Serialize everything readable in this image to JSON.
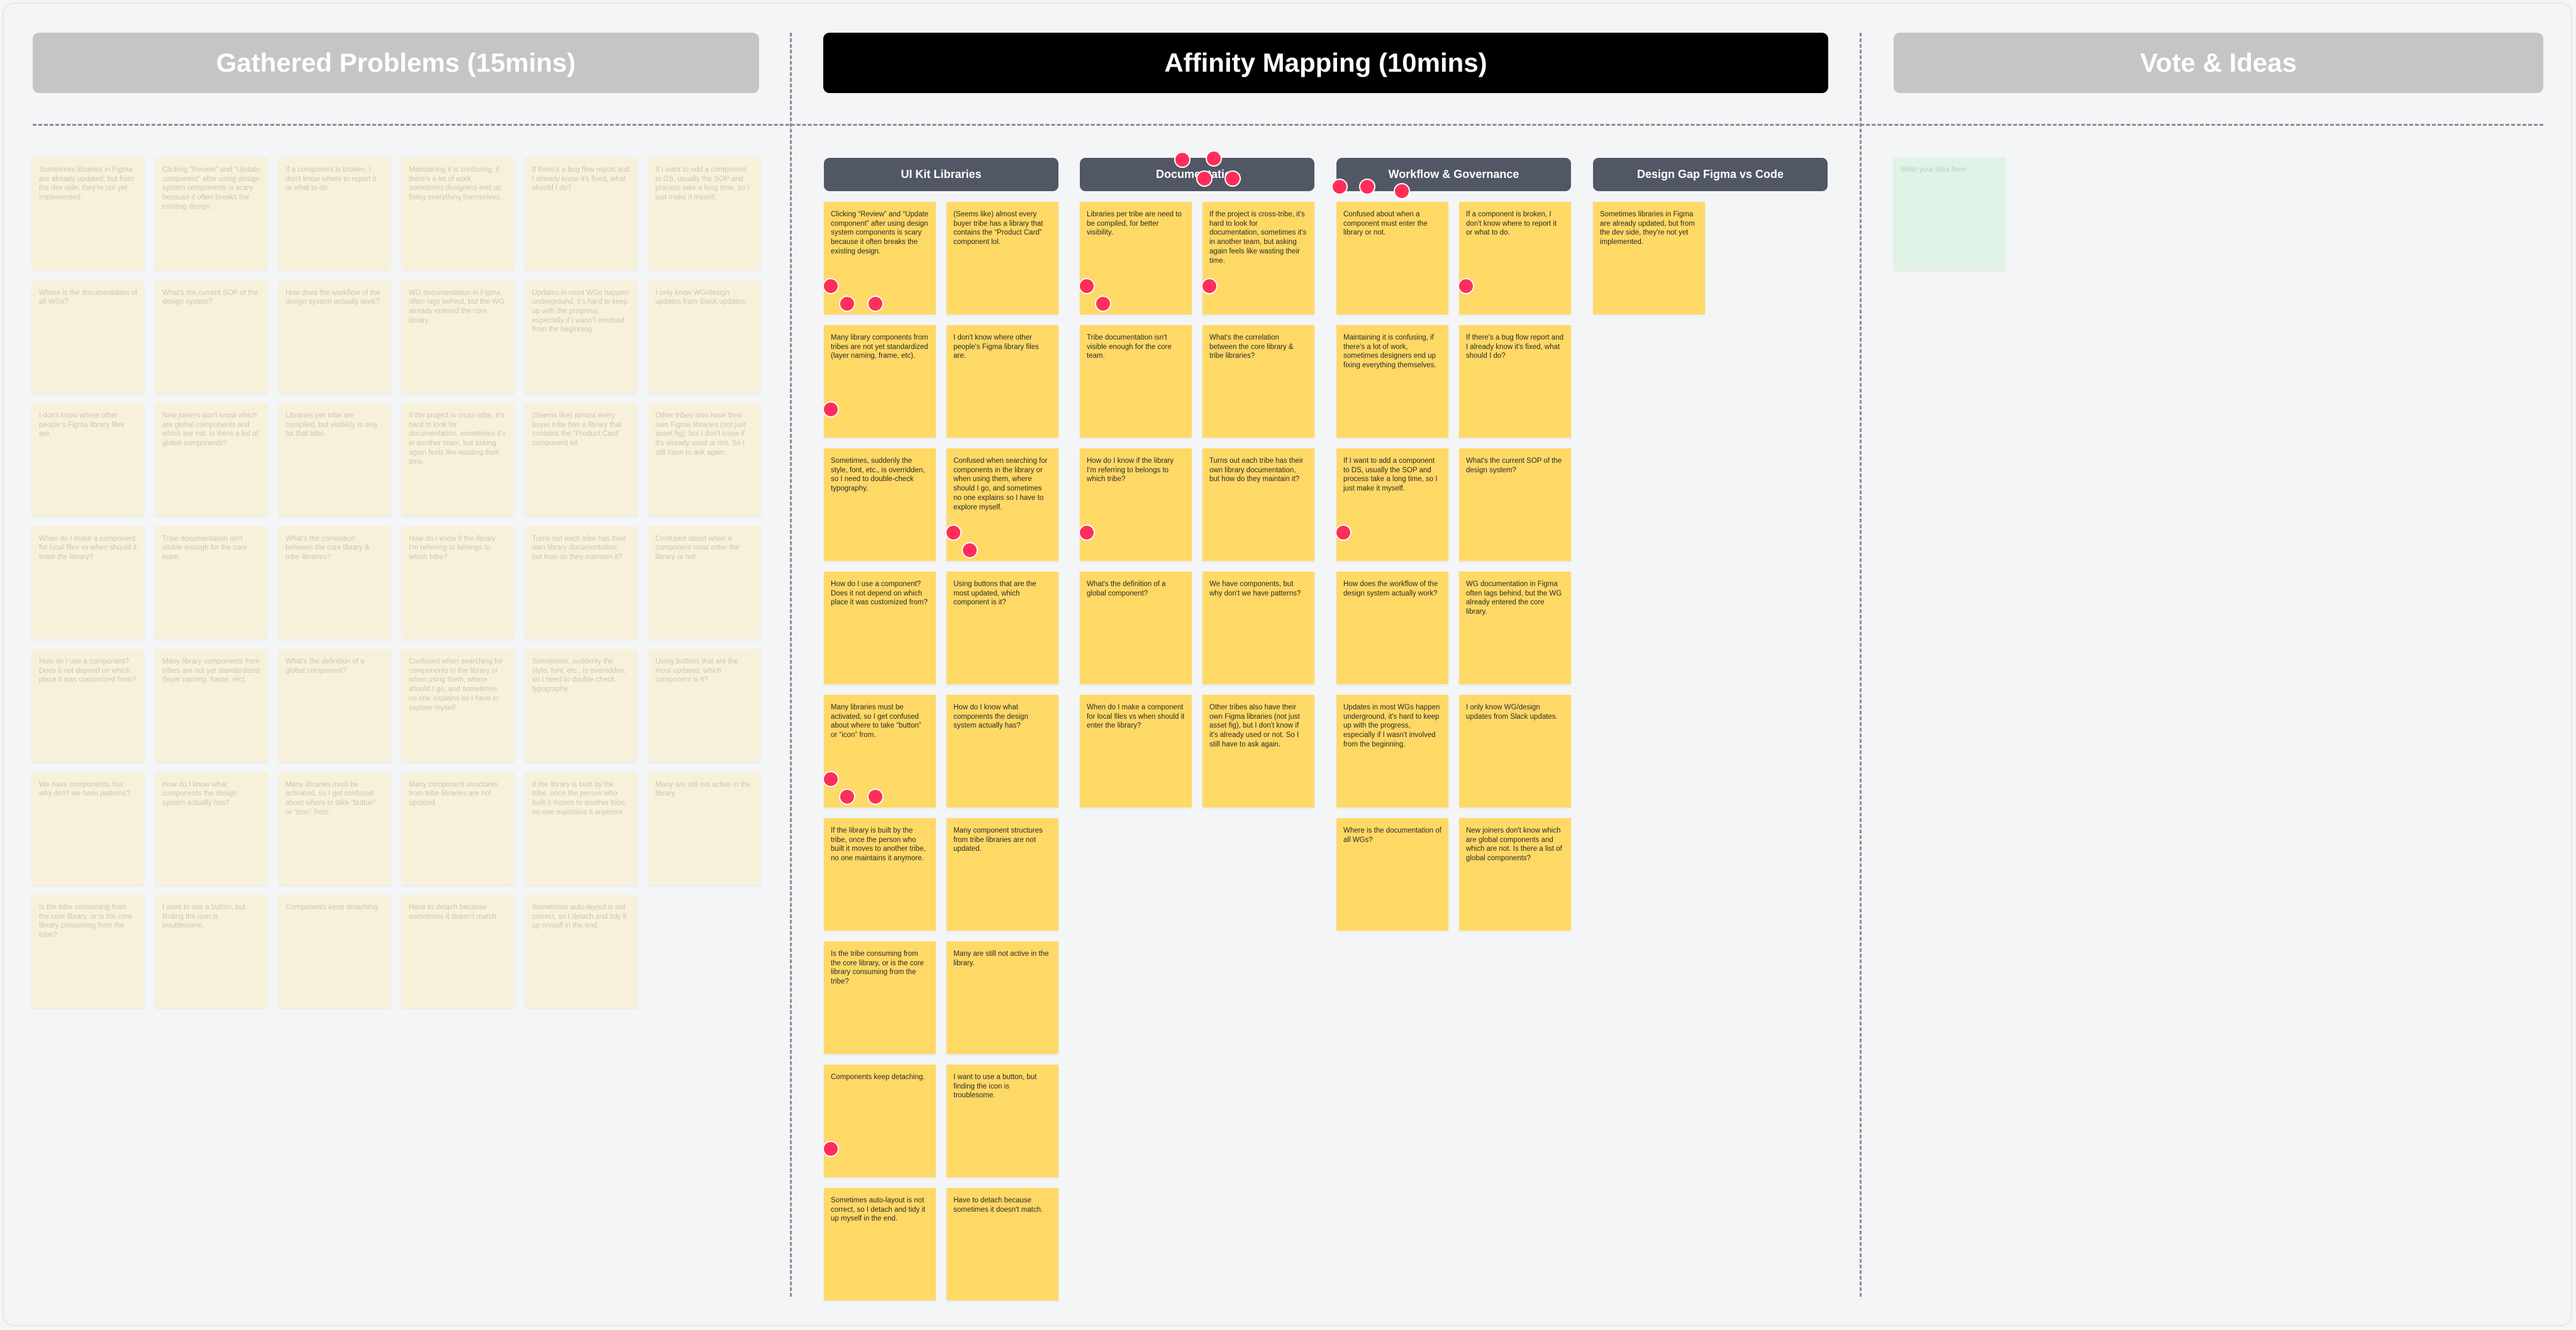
{
  "colors": {
    "background": "#f4f5f7",
    "section_inactive": "#c4c5c7",
    "section_active": "#000000",
    "group_header": "#525766",
    "sticky": "#ffd966",
    "sticky_faded": "#f8f1da",
    "idea_sticky": "#dff3e6",
    "vote_dot": "#ff2d5a"
  },
  "sections": {
    "gathered": {
      "title": "Gathered Problems (15mins)"
    },
    "affinity": {
      "title": "Affinity Mapping (10mins)"
    },
    "vote": {
      "title": "Vote & Ideas",
      "idea_placeholder": "Write your Idea here"
    }
  },
  "gathered_notes": [
    "Sometimes libraries in Figma are already updated, but from the dev side, they're not yet implemented.",
    "Clicking “Review” and “Update component” after using design system components is scary because it often breaks the existing design.",
    "If a component is broken, I don't know where to report it or what to do.",
    "Maintaining it is confusing, if there's a lot of work, sometimes designers end up fixing everything themselves.",
    "If there's a bug flow report and I already know it's fixed, what should I do?",
    "If I want to add a component to DS, usually the SOP and process take a long time, so I just make it myself.",
    "Where is the documentation of all WGs?",
    "What's the current SOP of the design system?",
    "How does the workflow of the design system actually work?",
    "WG documentation in Figma often lags behind, but the WG already entered the core library.",
    "Updates in most WGs happen underground, it's hard to keep up with the progress, especially if I wasn't involved from the beginning.",
    "I only know WG/design updates from Slack updates.",
    "I don't know where other people's Figma library files are.",
    "New joiners don't know which are global components and which are not. Is there a list of global components?",
    "Libraries per tribe are compiled, but visibility is only for that tribe.",
    "If the project is cross-tribe, it's hard to look for documentation, sometimes it's in another team, but asking again feels like wasting their time.",
    "(Seems like) almost every buyer tribe has a library that contains the “Product Card” component lol.",
    "Other tribes also have their own Figma libraries (not just asset fig), but I don't know if it's already used or not. So I still have to ask again.",
    "When do I make a component for local files vs when should it enter the library?",
    "Tribe documentation isn't visible enough for the core team.",
    "What's the correlation between the core library & tribe libraries?",
    "How do I know if the library I'm referring to belongs to which tribe?",
    "Turns out each tribe has their own library documentation, but how do they maintain it?",
    "Confused about when a component must enter the library or not.",
    "How do I use a component? Does it not depend on which place it was customized from?",
    "Many library components from tribes are not yet standardized (layer naming, frame, etc).",
    "What's the definition of a global component?",
    "Confused when searching for components in the library or when using them, where should I go, and sometimes no one explains so I have to explore myself.",
    "Sometimes, suddenly the style, font, etc., is overridden, so I need to double-check typography.",
    "Using buttons that are the most updated, which component is it?",
    "We have components, but why don't we have patterns?",
    "How do I know what components the design system actually has?",
    "Many libraries must be activated, so I get confused about where to take “button” or “icon” from.",
    "Many component structures from tribe libraries are not updated.",
    "If the library is built by the tribe, once the person who built it moves to another tribe, no one maintains it anymore.",
    "Many are still not active in the library.",
    "Is the tribe consuming from the core library, or is the core library consuming from the tribe?",
    "I want to use a button, but finding the icon is troublesome.",
    "Components keep detaching.",
    "Have to detach because sometimes it doesn't match.",
    "Sometimes auto-layout is not correct, so I detach and tidy it up myself in the end."
  ],
  "groups": [
    {
      "label": "UI Kit Libraries",
      "votes": 0,
      "notes": [
        {
          "text": "Clicking “Review” and “Update component” after using design system components is scary because it often breaks the existing design.",
          "votes": 3
        },
        {
          "text": "(Seems like) almost every buyer tribe has a library that contains the “Product Card” component lol.",
          "votes": 0
        },
        {
          "text": "Many library components from tribes are not yet standardized (layer naming, frame, etc).",
          "votes": 1
        },
        {
          "text": "I don't know where other people's Figma library files are.",
          "votes": 0
        },
        {
          "text": "Sometimes, suddenly the style, font, etc., is overridden, so I need to double-check typography.",
          "votes": 0
        },
        {
          "text": "Confused when searching for components in the library or when using them, where should I go, and sometimes no one explains so I have to explore myself.",
          "votes": 2
        },
        {
          "text": "How do I use a component? Does it not depend on which place it was customized from?",
          "votes": 0
        },
        {
          "text": "Using buttons that are the most updated, which component is it?",
          "votes": 0
        },
        {
          "text": "Many libraries must be activated, so I get confused about where to take “button” or “icon” from.",
          "votes": 3
        },
        {
          "text": "How do I know what components the design system actually has?",
          "votes": 0
        },
        {
          "text": "If the library is built by the tribe, once the person who built it moves to another tribe, no one maintains it anymore.",
          "votes": 0
        },
        {
          "text": "Many component structures from tribe libraries are not updated.",
          "votes": 0
        },
        {
          "text": "Is the tribe consuming from the core library, or is the core library consuming from the tribe?",
          "votes": 0
        },
        {
          "text": "Many are still not active in the library.",
          "votes": 0
        },
        {
          "text": "Components keep detaching.",
          "votes": 1
        },
        {
          "text": "I want to use a button, but finding the icon is troublesome.",
          "votes": 0
        },
        {
          "text": "Sometimes auto-layout is not correct, so I detach and tidy it up myself in the end.",
          "votes": 0
        },
        {
          "text": "Have to detach because sometimes it doesn't match.",
          "votes": 0
        }
      ]
    },
    {
      "label": "Documentation",
      "votes": 4,
      "notes": [
        {
          "text": "Libraries per tribe are  need to be compiled, for better visibility.",
          "votes": 2
        },
        {
          "text": "If the project is cross-tribe, it's hard to look for documentation, sometimes it's in another team, but asking again feels like wasting their time.",
          "votes": 1
        },
        {
          "text": "Tribe documentation isn't visible enough for the core team.",
          "votes": 0
        },
        {
          "text": "What's the correlation between the core library & tribe libraries?",
          "votes": 0
        },
        {
          "text": "How do I know if the library I'm referring to belongs to which tribe?",
          "votes": 1
        },
        {
          "text": "Turns out each tribe has their own library documentation, but how do they maintain it?",
          "votes": 0
        },
        {
          "text": "What's the definition of a global component?",
          "votes": 0
        },
        {
          "text": "We have components, but why don't we have patterns?",
          "votes": 0
        },
        {
          "text": "When do I make a component for local files vs when should it enter the library?",
          "votes": 0
        },
        {
          "text": "Other tribes also have their own Figma libraries (not just asset fig), but I don't know if it's already used or not. So I still have to ask again.",
          "votes": 0
        }
      ]
    },
    {
      "label": "Workflow & Governance",
      "votes": 3,
      "notes": [
        {
          "text": "Confused about when a component must enter the library or not.",
          "votes": 0
        },
        {
          "text": "If a component is broken, I don't know where to report it or what to do.",
          "votes": 1
        },
        {
          "text": "Maintaining it is confusing, if there's a lot of work, sometimes designers end up fixing everything themselves.",
          "votes": 0
        },
        {
          "text": "If there's a bug flow report and I already know it's fixed, what should I do?",
          "votes": 0
        },
        {
          "text": "If I want to add a component to DS, usually the SOP and process take a long time, so I just make it myself.",
          "votes": 1
        },
        {
          "text": "What's the current SOP of the design system?",
          "votes": 0
        },
        {
          "text": "How does the workflow of the design system actually work?",
          "votes": 0
        },
        {
          "text": "WG documentation in Figma often lags behind, but the WG already entered the core library.",
          "votes": 0
        },
        {
          "text": "Updates in most WGs happen underground, it's hard to keep up with the progress, especially if I wasn't involved from the beginning.",
          "votes": 0
        },
        {
          "text": "I only know WG/design updates from Slack updates.",
          "votes": 0
        },
        {
          "text": "Where is the documentation of all WGs?",
          "votes": 0
        },
        {
          "text": "New joiners don't know which are global components and which are not. Is there a list of global components?",
          "votes": 0
        }
      ]
    },
    {
      "label": "Design Gap Figma vs Code",
      "votes": 0,
      "notes": [
        {
          "text": "Sometimes libraries in Figma are already updated, but from the dev side, they're not yet implemented.",
          "votes": 0
        }
      ]
    }
  ]
}
